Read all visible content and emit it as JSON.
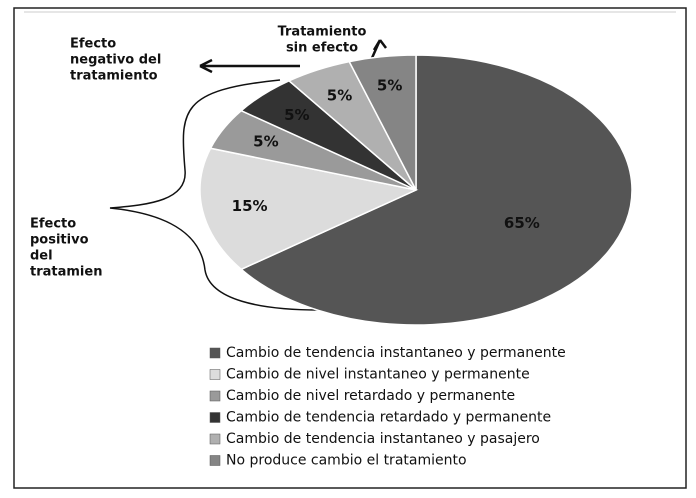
{
  "chart_data": {
    "type": "pie",
    "categories": [
      "Cambio de tendencia instantaneo y permanente",
      "Cambio de nivel instantaneo y permanente",
      "Cambio de nivel retardado y permanente",
      "Cambio de tendencia  retardado y permanente",
      "Cambio de tendencia instantaneo y pasajero",
      "No produce cambio el tratamiento"
    ],
    "values": [
      65,
      15,
      5,
      5,
      5,
      5
    ],
    "value_labels": [
      "65%",
      "15%",
      "5%",
      "5%",
      "5%",
      "5%"
    ],
    "colors": [
      "#555555",
      "#dcdcdc",
      "#9a9a9a",
      "#333333",
      "#b0b0b0",
      "#858585"
    ],
    "annotations": [
      [
        "Efecto",
        "negativo del",
        "tratamiento"
      ],
      [
        "Tratamiento",
        "sin efecto"
      ],
      [
        "Efecto",
        "positivo",
        "del",
        "tratamien"
      ]
    ]
  }
}
